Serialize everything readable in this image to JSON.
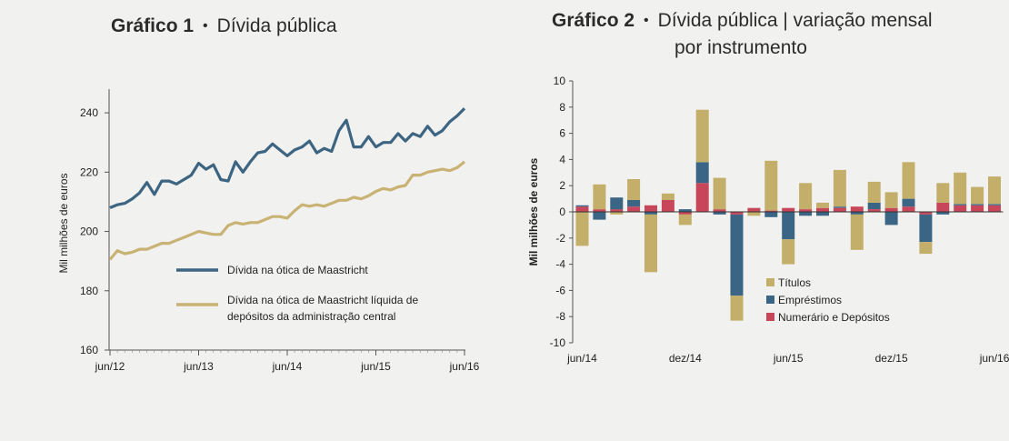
{
  "panel1": {
    "title_num": "Gráfico 1",
    "title_sep": "•",
    "title_text": "Dívida pública"
  },
  "panel2": {
    "title_num": "Gráfico 2",
    "title_sep": "•",
    "title_line1": "Dívida pública | variação mensal",
    "title_line2": "por instrumento"
  },
  "chart_data": [
    {
      "type": "line",
      "title": "Dívida pública",
      "xlabel": "",
      "ylabel": "Mil milhões de euros",
      "ylim": [
        160,
        248
      ],
      "yticks": [
        160,
        180,
        200,
        220,
        240
      ],
      "xticks": [
        "jun/12",
        "jun/13",
        "jun/14",
        "jun/15",
        "jun/16"
      ],
      "x_count": 49,
      "legend": "inside, middle",
      "series": [
        {
          "name": "Dívida na ótica de Maastricht",
          "color": "#3d6582",
          "values": [
            208,
            209,
            209.5,
            211,
            213,
            216.5,
            212.5,
            217,
            217,
            216,
            217.5,
            219,
            223,
            221,
            222.5,
            217.5,
            217,
            223.5,
            220,
            223.5,
            226.5,
            227,
            229.5,
            227.5,
            225.5,
            227.5,
            228.5,
            230.5,
            226.5,
            228,
            227,
            234,
            237.5,
            228.5,
            228.5,
            232,
            228.5,
            230,
            230,
            233,
            230.5,
            233,
            232,
            235.5,
            232.5,
            234,
            237,
            239,
            241.5
          ]
        },
        {
          "name": "Dívida na ótica de Maastricht líquida de depósitos da administração central",
          "color": "#c8b274",
          "values": [
            190.5,
            193.5,
            192.5,
            193,
            194,
            194,
            195,
            196,
            196,
            197,
            198,
            199,
            200,
            199.5,
            199,
            199,
            202,
            203,
            202.5,
            203,
            203,
            204,
            205,
            205,
            204.5,
            207,
            209,
            208.5,
            209,
            208.5,
            209.5,
            210.5,
            210.5,
            211.5,
            211,
            212,
            213.5,
            214.5,
            214,
            215,
            215.5,
            219,
            219,
            220,
            220.5,
            221,
            220.5,
            221.5,
            223.5
          ]
        }
      ],
      "legend_labels": {
        "s1": "Dívida na ótica de Maastricht",
        "s2a": "Dívida na ótica de Maastricht líquida de",
        "s2b": "depósitos da administração central"
      }
    },
    {
      "type": "bar",
      "stacked": true,
      "title": "Dívida pública | variação mensal por instrumento",
      "xlabel": "",
      "ylabel": "Mil milhões de euros",
      "ylim": [
        -10,
        10
      ],
      "yticks": [
        -10,
        -8,
        -6,
        -4,
        -2,
        0,
        2,
        4,
        6,
        8,
        10
      ],
      "xticks": [
        "jun/14",
        "dez/14",
        "jun/15",
        "dez/15",
        "jun/16"
      ],
      "xtick_index": [
        0,
        6,
        12,
        18,
        24
      ],
      "categories_count": 25,
      "legend": "inside, lower-middle",
      "series": [
        {
          "name": "Numerário e Depósitos",
          "color": "#c8465a",
          "values": [
            0.4,
            0.2,
            0.2,
            0.4,
            0.5,
            0.9,
            -0.2,
            2.2,
            0.2,
            -0.2,
            0.3,
            0.1,
            0.3,
            0.2,
            0.3,
            0.3,
            0.4,
            0.2,
            0.3,
            0.4,
            -0.2,
            0.7,
            0.5,
            0.5,
            0.5
          ]
        },
        {
          "name": "Empréstimos",
          "color": "#3a6585",
          "values": [
            0.1,
            -0.6,
            0.9,
            0.5,
            -0.2,
            0,
            0.2,
            1.6,
            -0.2,
            -6.2,
            0,
            -0.4,
            -2.1,
            -0.3,
            -0.3,
            0.1,
            -0.2,
            0.5,
            -1.0,
            0.6,
            -2.1,
            -0.2,
            0.1,
            0.1,
            0.1
          ]
        },
        {
          "name": "Títulos",
          "color": "#c3ae6a",
          "values": [
            -2.6,
            1.9,
            -0.2,
            1.6,
            -4.4,
            0.5,
            -0.8,
            4.0,
            2.4,
            -1.9,
            -0.3,
            3.8,
            -1.9,
            2.0,
            0.4,
            2.8,
            -2.7,
            1.6,
            1.2,
            2.8,
            -0.9,
            1.5,
            2.4,
            1.3,
            2.1
          ]
        }
      ],
      "legend_order": [
        "Títulos",
        "Empréstimos",
        "Numerário e Depósitos"
      ]
    }
  ]
}
